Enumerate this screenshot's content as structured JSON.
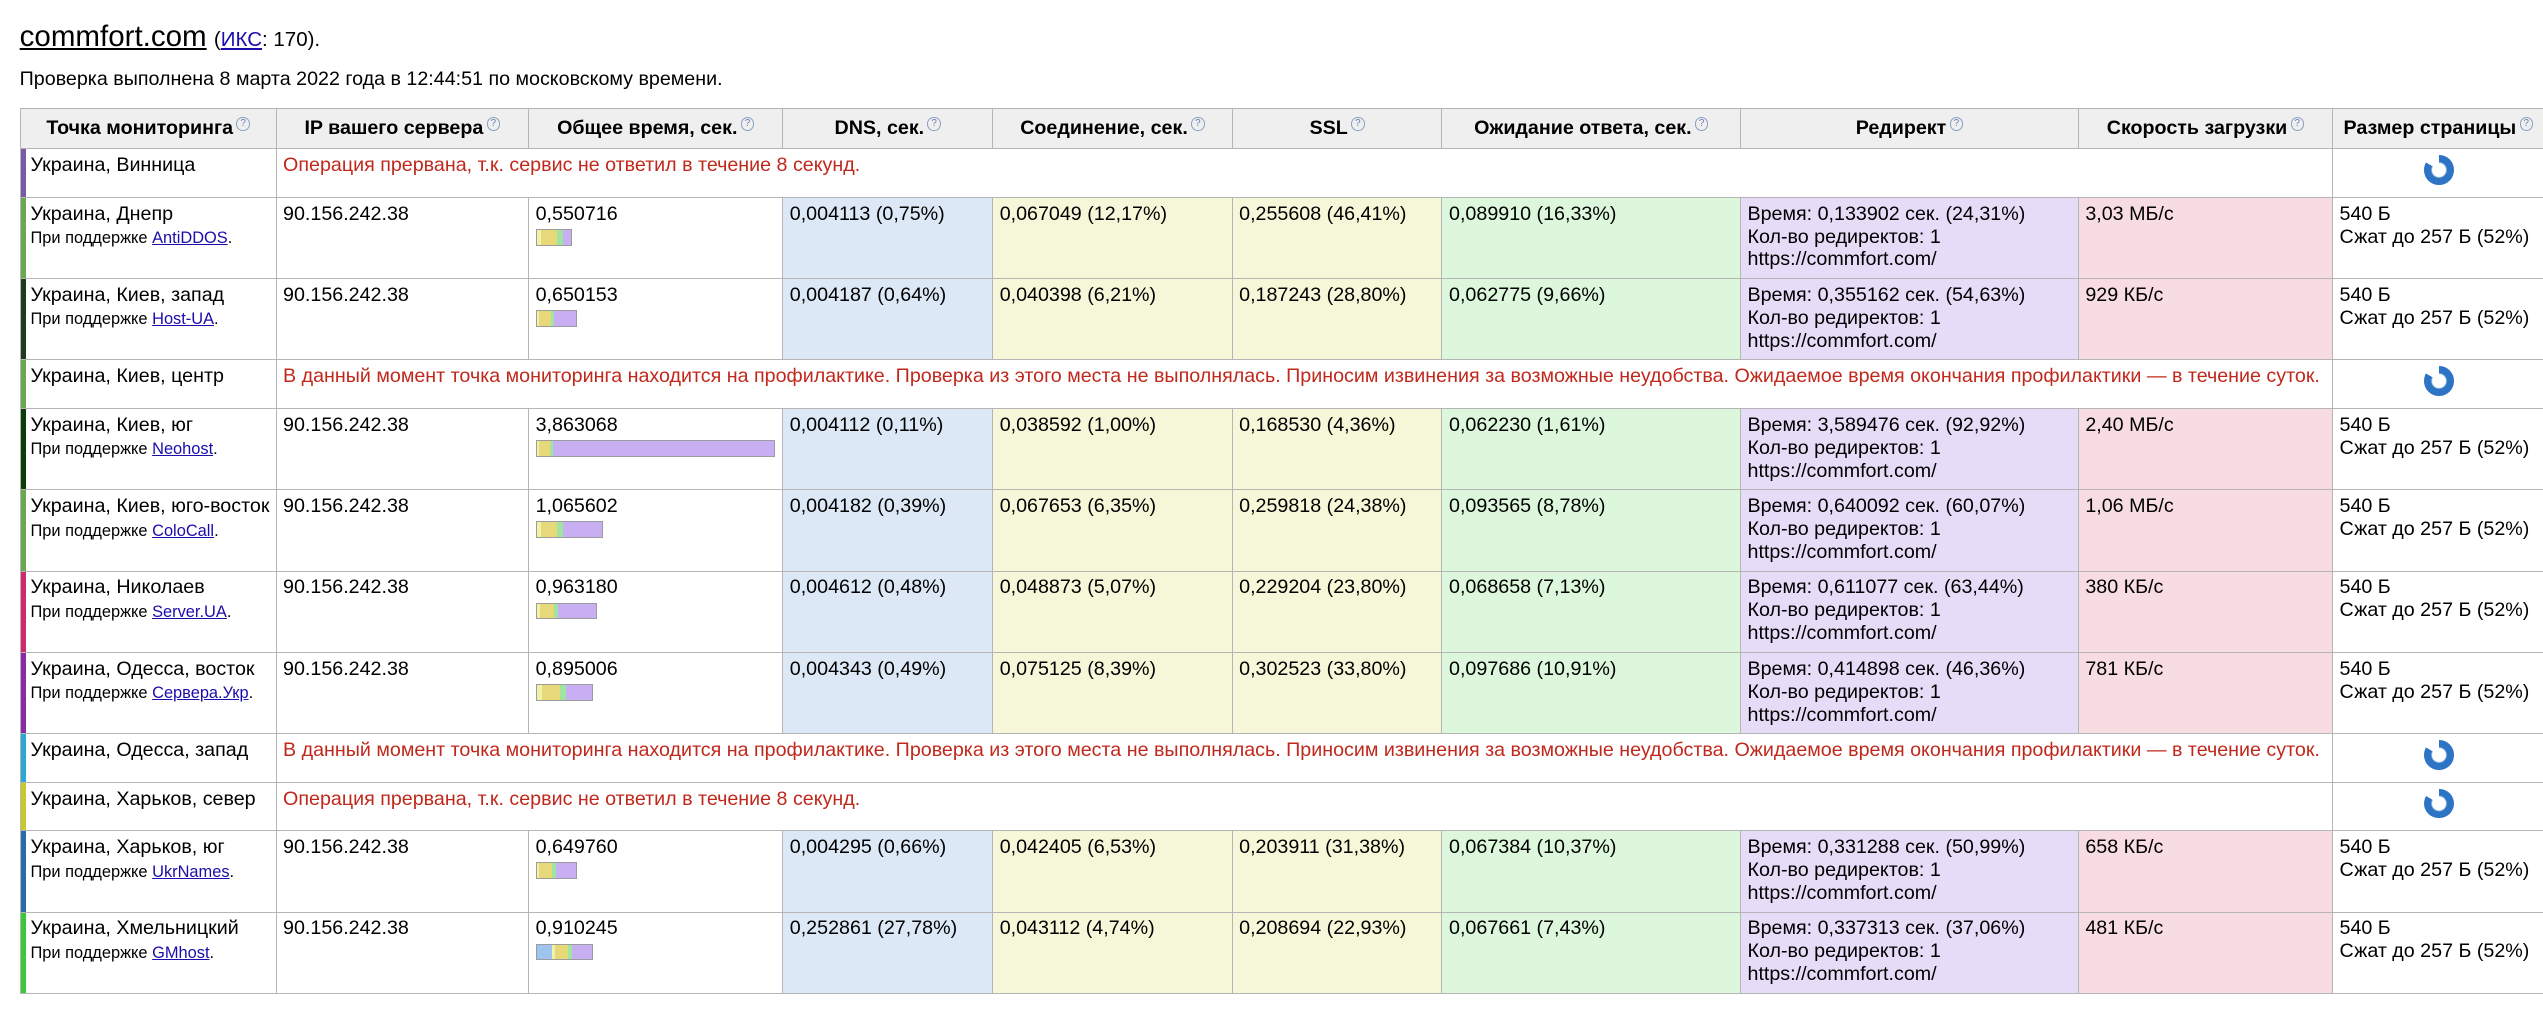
{
  "header": {
    "site": "commfort.com",
    "iks_open": "(",
    "iks_label": "ИКС",
    "iks_value": ": 170).",
    "checked": "Проверка выполнена 8 марта 2022 года в 12:44:51 по московскому времени."
  },
  "columns": [
    "Точка мониторинга",
    "IP вашего сервера",
    "Общее время, сек.",
    "DNS, сек.",
    "Соединение, сек.",
    "SSL",
    "Ожидание ответа, сек.",
    "Редирект",
    "Скорость загрузки",
    "Размер страницы"
  ],
  "supported_by": "При поддержке",
  "colors": {
    "dns": "#9fc4ee",
    "connect": "#f0f2a8",
    "ssl": "#e7d97a",
    "wait": "#9fe49f",
    "redirect": "#c8aef2",
    "error": "#c0281c"
  },
  "rows": [
    {
      "point": "Украина, Винница",
      "bar_color": "#7a5aa8",
      "type": "error",
      "message": "Операция прервана, т.к. сервис не ответил в течение 8 секунд."
    },
    {
      "point": "Украина, Днепр",
      "bar_color": "#6aa84f",
      "type": "data",
      "sponsor": "AntiDDOS",
      "ip": "90.156.242.38",
      "total": "0,550716",
      "total_frac": 0.1426,
      "dns": "0,004113 (0,75%)",
      "connect": "0,067049 (12,17%)",
      "ssl": "0,255608 (46,41%)",
      "wait": "0,089910 (16,33%)",
      "redirect_time": "Время: 0,133902 сек. (24,31%)",
      "redirect_count": "Кол-во редиректов: 1",
      "redirect_url": "https://commfort.com/",
      "speed": "3,03 МБ/с",
      "size": "540 Б",
      "compressed": "Сжат до 257 Б (52%)",
      "parts": [
        0.75,
        12.17,
        46.41,
        16.33,
        24.31
      ]
    },
    {
      "point": "Украина, Киев, запад",
      "bar_color": "#1f3b1f",
      "type": "data",
      "sponsor": "Host-UA",
      "ip": "90.156.242.38",
      "total": "0,650153",
      "total_frac": 0.1683,
      "dns": "0,004187 (0,64%)",
      "connect": "0,040398 (6,21%)",
      "ssl": "0,187243 (28,80%)",
      "wait": "0,062775 (9,66%)",
      "redirect_time": "Время: 0,355162 сек. (54,63%)",
      "redirect_count": "Кол-во редиректов: 1",
      "redirect_url": "https://commfort.com/",
      "speed": "929 КБ/с",
      "size": "540 Б",
      "compressed": "Сжат до 257 Б (52%)",
      "parts": [
        0.64,
        6.21,
        28.8,
        9.66,
        54.63
      ]
    },
    {
      "point": "Украина, Киев, центр",
      "bar_color": "#6aa84f",
      "type": "error",
      "message": "В данный момент точка мониторинга находится на профилактике. Проверка из этого места не выполнялась. Приносим извинения за возможные неудобства. Ожидаемое время окончания профилактики — в течение суток."
    },
    {
      "point": "Украина, Киев, юг",
      "bar_color": "#0b3d0b",
      "type": "data",
      "sponsor": "Neohost",
      "ip": "90.156.242.38",
      "total": "3,863068",
      "total_frac": 1.0,
      "dns": "0,004112 (0,11%)",
      "connect": "0,038592 (1,00%)",
      "ssl": "0,168530 (4,36%)",
      "wait": "0,062230 (1,61%)",
      "redirect_time": "Время: 3,589476 сек. (92,92%)",
      "redirect_count": "Кол-во редиректов: 1",
      "redirect_url": "https://commfort.com/",
      "speed": "2,40 МБ/с",
      "size": "540 Б",
      "compressed": "Сжат до 257 Б (52%)",
      "parts": [
        0.11,
        1.0,
        4.36,
        1.61,
        92.92
      ]
    },
    {
      "point": "Украина, Киев, юго-восток",
      "bar_color": "#6aa84f",
      "type": "data",
      "sponsor": "ColoCall",
      "ip": "90.156.242.38",
      "total": "1,065602",
      "total_frac": 0.2758,
      "dns": "0,004182 (0,39%)",
      "connect": "0,067653 (6,35%)",
      "ssl": "0,259818 (24,38%)",
      "wait": "0,093565 (8,78%)",
      "redirect_time": "Время: 0,640092 сек. (60,07%)",
      "redirect_count": "Кол-во редиректов: 1",
      "redirect_url": "https://commfort.com/",
      "speed": "1,06 МБ/с",
      "size": "540 Б",
      "compressed": "Сжат до 257 Б (52%)",
      "parts": [
        0.39,
        6.35,
        24.38,
        8.78,
        60.07
      ]
    },
    {
      "point": "Украина, Николаев",
      "bar_color": "#d02a6a",
      "type": "data",
      "sponsor": "Server.UA",
      "ip": "90.156.242.38",
      "total": "0,963180",
      "total_frac": 0.2493,
      "dns": "0,004612 (0,48%)",
      "connect": "0,048873 (5,07%)",
      "ssl": "0,229204 (23,80%)",
      "wait": "0,068658 (7,13%)",
      "redirect_time": "Время: 0,611077 сек. (63,44%)",
      "redirect_count": "Кол-во редиректов: 1",
      "redirect_url": "https://commfort.com/",
      "speed": "380 КБ/с",
      "size": "540 Б",
      "compressed": "Сжат до 257 Б (52%)",
      "parts": [
        0.48,
        5.07,
        23.8,
        7.13,
        63.44
      ]
    },
    {
      "point": "Украина, Одесса, восток",
      "bar_color": "#8a2aa8",
      "type": "data",
      "sponsor": "Сервера.Укр",
      "ip": "90.156.242.38",
      "total": "0,895006",
      "total_frac": 0.2317,
      "dns": "0,004343 (0,49%)",
      "connect": "0,075125 (8,39%)",
      "ssl": "0,302523 (33,80%)",
      "wait": "0,097686 (10,91%)",
      "redirect_time": "Время: 0,414898 сек. (46,36%)",
      "redirect_count": "Кол-во редиректов: 1",
      "redirect_url": "https://commfort.com/",
      "speed": "781 КБ/с",
      "size": "540 Б",
      "compressed": "Сжат до 257 Б (52%)",
      "parts": [
        0.49,
        8.39,
        33.8,
        10.91,
        46.36
      ]
    },
    {
      "point": "Украина, Одесса, запад",
      "bar_color": "#29a8d8",
      "type": "error",
      "message": "В данный момент точка мониторинга находится на профилактике. Проверка из этого места не выполнялась. Приносим извинения за возможные неудобства. Ожидаемое время окончания профилактики — в течение суток."
    },
    {
      "point": "Украина, Харьков, север",
      "bar_color": "#c8c82a",
      "type": "error",
      "message": "Операция прервана, т.к. сервис не ответил в течение 8 секунд."
    },
    {
      "point": "Украина, Харьков, юг",
      "bar_color": "#2a6aa8",
      "type": "data",
      "sponsor": "UkrNames",
      "ip": "90.156.242.38",
      "total": "0,649760",
      "total_frac": 0.1682,
      "dns": "0,004295 (0,66%)",
      "connect": "0,042405 (6,53%)",
      "ssl": "0,203911 (31,38%)",
      "wait": "0,067384 (10,37%)",
      "redirect_time": "Время: 0,331288 сек. (50,99%)",
      "redirect_count": "Кол-во редиректов: 1",
      "redirect_url": "https://commfort.com/",
      "speed": "658 КБ/с",
      "size": "540 Б",
      "compressed": "Сжат до 257 Б (52%)",
      "parts": [
        0.66,
        6.53,
        31.38,
        10.37,
        50.99
      ]
    },
    {
      "point": "Украина, Хмельницкий",
      "bar_color": "#3ac83a",
      "type": "data",
      "sponsor": "GMhost",
      "ip": "90.156.242.38",
      "total": "0,910245",
      "total_frac": 0.2356,
      "dns": "0,252861 (27,78%)",
      "connect": "0,043112 (4,74%)",
      "ssl": "0,208694 (22,93%)",
      "wait": "0,067661 (7,43%)",
      "redirect_time": "Время: 0,337313 сек. (37,06%)",
      "redirect_count": "Кол-во редиректов: 1",
      "redirect_url": "https://commfort.com/",
      "speed": "481 КБ/с",
      "size": "540 Б",
      "compressed": "Сжат до 257 Б (52%)",
      "parts": [
        27.78,
        4.74,
        22.93,
        7.43,
        37.06
      ]
    }
  ]
}
